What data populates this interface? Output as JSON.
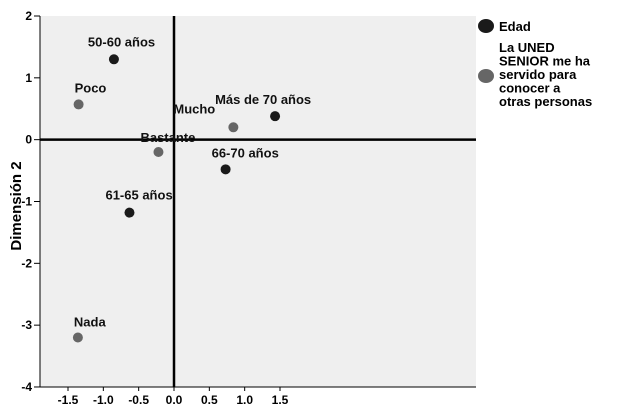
{
  "chart_data": {
    "type": "scatter",
    "title": "",
    "xlabel": "",
    "ylabel": "Dimensión 2",
    "xlim": [
      -1.5,
      1.75
    ],
    "ylim": [
      -4,
      2
    ],
    "x_ticks": [
      "-1.5",
      "-1.0",
      "-0.5",
      "0.0",
      "0.5",
      "1.0",
      "1.5"
    ],
    "y_ticks": [
      "2",
      "1",
      "0",
      "-1",
      "-2",
      "-3",
      "-4"
    ],
    "grid": false,
    "legend_position": "right",
    "series": [
      {
        "name": "Edad",
        "color": "#1a1a1a",
        "points": [
          {
            "label": "50-60 años",
            "x": -0.85,
            "y": 1.3
          },
          {
            "label": "Más de 70 años",
            "x": 1.43,
            "y": 0.38
          },
          {
            "label": "66-70 años",
            "x": 0.73,
            "y": -0.48
          },
          {
            "label": "61-65 años",
            "x": -0.63,
            "y": -1.18
          }
        ]
      },
      {
        "name": "La UNED SENIOR me ha servido para conocer a otras personas",
        "color": "#666666",
        "points": [
          {
            "label": "Poco",
            "x": -1.35,
            "y": 0.57
          },
          {
            "label": "Mucho",
            "x": 0.84,
            "y": 0.2
          },
          {
            "label": "Bastante",
            "x": -0.22,
            "y": -0.2
          },
          {
            "label": "Nada",
            "x": -1.36,
            "y": -3.2
          }
        ]
      }
    ],
    "legend_lines": [
      [
        "Edad"
      ],
      [
        "La UNED",
        "SENIOR me ha",
        "servido para",
        "conocer a",
        "otras personas"
      ]
    ]
  }
}
